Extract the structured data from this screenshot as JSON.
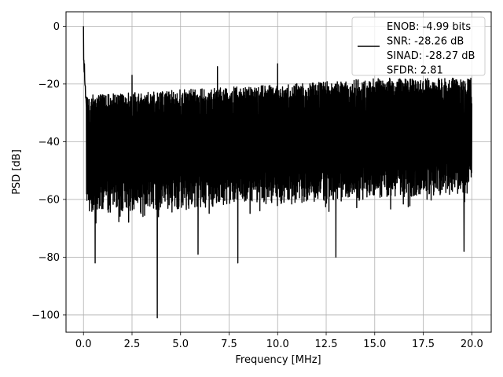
{
  "chart_data": {
    "type": "line",
    "title": "",
    "xlabel": "Frequency [MHz]",
    "ylabel": "PSD [dB]",
    "xlim": [
      -0.9,
      21.0
    ],
    "ylim": [
      -106,
      5
    ],
    "x_ticks": [
      0.0,
      2.5,
      5.0,
      7.5,
      10.0,
      12.5,
      15.0,
      17.5,
      20.0
    ],
    "x_tick_labels": [
      "0.0",
      "2.5",
      "5.0",
      "7.5",
      "10.0",
      "12.5",
      "15.0",
      "17.5",
      "20.0"
    ],
    "y_ticks": [
      0,
      -20,
      -40,
      -60,
      -80,
      -100
    ],
    "y_tick_labels": [
      "0",
      "−20",
      "−40",
      "−60",
      "−80",
      "−100"
    ],
    "grid": true,
    "legend_position": "top-right",
    "series": [
      {
        "name": "ENOB: -4.99 bits\nSNR: -28.26 dB\nSINAD: -28.27 dB\nSFDR: 2.81",
        "color": "#000000",
        "x_range": [
          0.0,
          20.0
        ],
        "noise_band": {
          "upper_db": [
            -24,
            -18
          ],
          "lower_db": [
            -65,
            -58
          ]
        },
        "peaks": [
          {
            "x": 0.0,
            "y": 0
          },
          {
            "x": 0.05,
            "y": -13
          },
          {
            "x": 2.5,
            "y": -17
          },
          {
            "x": 6.9,
            "y": -14
          },
          {
            "x": 10.0,
            "y": -13
          },
          {
            "x": 19.95,
            "y": -18
          }
        ],
        "dips": [
          {
            "x": 0.6,
            "y": -82
          },
          {
            "x": 3.8,
            "y": -101
          },
          {
            "x": 5.9,
            "y": -79
          },
          {
            "x": 7.95,
            "y": -82
          },
          {
            "x": 13.0,
            "y": -80
          },
          {
            "x": 19.6,
            "y": -78
          }
        ]
      }
    ]
  }
}
